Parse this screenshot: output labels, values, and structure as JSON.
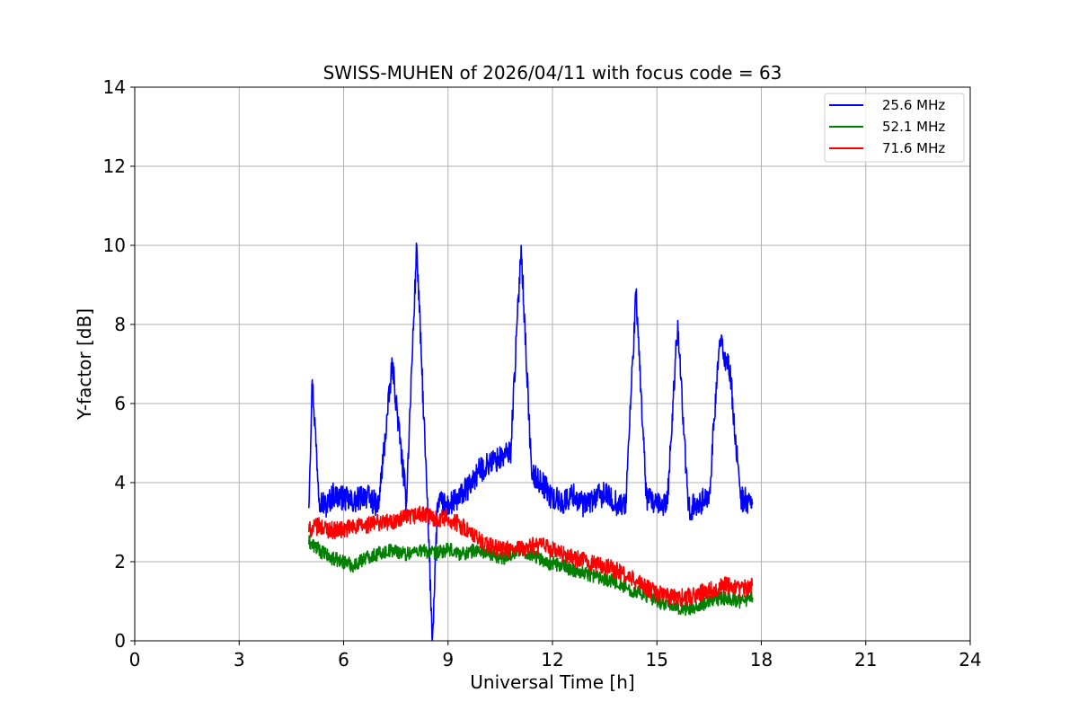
{
  "chart_data": {
    "type": "line",
    "title": "SWISS-MUHEN of 2026/04/11 with focus code = 63",
    "xlabel": "Universal Time [h]",
    "ylabel": "Y-factor [dB]",
    "xlim": [
      0,
      24
    ],
    "ylim": [
      0,
      14
    ],
    "xticks": [
      "0",
      "3",
      "6",
      "9",
      "12",
      "15",
      "18",
      "21",
      "24"
    ],
    "yticks": [
      "0",
      "2",
      "4",
      "6",
      "8",
      "10",
      "12",
      "14"
    ],
    "grid": true,
    "legend_position": "top-right",
    "series": [
      {
        "name": "25.6 MHz",
        "color": "#0000ff",
        "x": [
          5.0,
          5.1,
          5.3,
          5.5,
          5.7,
          6.0,
          6.3,
          6.6,
          7.0,
          7.4,
          7.8,
          8.1,
          8.4,
          8.55,
          8.7,
          9.0,
          9.3,
          9.6,
          9.9,
          10.2,
          10.5,
          10.8,
          11.1,
          11.4,
          11.7,
          12.0,
          12.3,
          12.6,
          12.9,
          13.2,
          13.5,
          13.8,
          14.1,
          14.4,
          14.7,
          15.0,
          15.3,
          15.6,
          15.9,
          16.2,
          16.5,
          16.8,
          17.1,
          17.4,
          17.75
        ],
        "y": [
          3.5,
          6.6,
          3.6,
          3.4,
          3.7,
          3.6,
          3.5,
          3.7,
          3.4,
          7.0,
          3.5,
          10.0,
          3.6,
          0.0,
          3.5,
          3.4,
          3.6,
          3.9,
          4.3,
          4.5,
          4.6,
          4.8,
          10.0,
          4.2,
          4.0,
          3.6,
          3.5,
          3.7,
          3.4,
          3.6,
          3.7,
          3.5,
          3.4,
          8.8,
          3.6,
          3.4,
          3.5,
          8.1,
          3.3,
          3.5,
          3.6,
          7.6,
          6.8,
          3.6,
          3.5
        ]
      },
      {
        "name": "52.1 MHz",
        "color": "#008000",
        "x": [
          5.0,
          5.3,
          5.6,
          6.0,
          6.3,
          6.6,
          7.0,
          7.4,
          7.8,
          8.2,
          8.6,
          9.0,
          9.4,
          9.8,
          10.2,
          10.6,
          11.0,
          11.4,
          11.8,
          12.2,
          12.6,
          13.0,
          13.4,
          13.8,
          14.2,
          14.6,
          15.0,
          15.4,
          15.8,
          16.2,
          16.6,
          17.0,
          17.4,
          17.75
        ],
        "y": [
          2.5,
          2.3,
          2.1,
          2.0,
          1.9,
          2.1,
          2.2,
          2.3,
          2.2,
          2.3,
          2.2,
          2.3,
          2.2,
          2.3,
          2.2,
          2.1,
          2.3,
          2.2,
          2.0,
          1.9,
          1.8,
          1.7,
          1.6,
          1.5,
          1.3,
          1.2,
          1.0,
          0.9,
          0.8,
          0.9,
          1.0,
          1.1,
          1.0,
          1.1
        ]
      },
      {
        "name": "71.6 MHz",
        "color": "#ff0000",
        "x": [
          5.0,
          5.3,
          5.6,
          6.0,
          6.3,
          6.6,
          7.0,
          7.4,
          7.8,
          8.2,
          8.6,
          9.0,
          9.4,
          9.8,
          10.2,
          10.6,
          11.0,
          11.4,
          11.8,
          12.2,
          12.6,
          13.0,
          13.4,
          13.8,
          14.2,
          14.6,
          15.0,
          15.4,
          15.8,
          16.2,
          16.6,
          17.0,
          17.4,
          17.75
        ],
        "y": [
          2.8,
          2.9,
          2.8,
          2.8,
          2.9,
          2.9,
          3.0,
          3.0,
          3.1,
          3.2,
          3.1,
          3.1,
          2.9,
          2.6,
          2.4,
          2.3,
          2.3,
          2.4,
          2.4,
          2.2,
          2.1,
          2.0,
          1.9,
          1.8,
          1.6,
          1.4,
          1.2,
          1.1,
          1.1,
          1.2,
          1.3,
          1.4,
          1.3,
          1.4
        ]
      }
    ]
  }
}
